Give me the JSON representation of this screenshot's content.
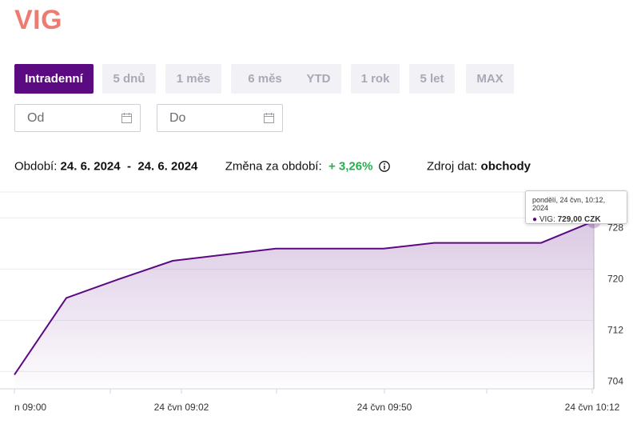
{
  "page": {
    "title": "VIG"
  },
  "periods": [
    {
      "label": "Intradenní",
      "active": true
    },
    {
      "label": "5 dnů",
      "active": false
    },
    {
      "label": "1 měs",
      "active": false
    },
    {
      "label": "6 měs",
      "active": false
    },
    {
      "label": "YTD",
      "active": false
    },
    {
      "label": "1 rok",
      "active": false
    },
    {
      "label": "5 let",
      "active": false
    },
    {
      "label": "MAX",
      "active": false
    }
  ],
  "date_filter": {
    "from_placeholder": "Od",
    "to_placeholder": "Do",
    "icon": "calendar-icon"
  },
  "info": {
    "period_label": "Období:",
    "period_from": "24. 6. 2024",
    "separator": "-",
    "period_to": "24. 6. 2024",
    "change_label": "Změna za období:",
    "change_value": "+ 3,26%",
    "source_label": "Zdroj dat:",
    "source_value": "obchody"
  },
  "colors": {
    "title": "#ef7b70",
    "accent": "#5b0a82",
    "positive": "#22b14c",
    "inactive_tab_bg": "#f2f1f6"
  },
  "tooltip": {
    "date_line": "pondělí, 24 čvn, 10:12, 2024",
    "series_label": "VIG:",
    "value": "729,00 CZK"
  },
  "chart_data": {
    "type": "area",
    "series": [
      {
        "name": "VIG",
        "x": [
          "09:00",
          "09:01",
          "09:02",
          "09:03",
          "09:05",
          "09:30",
          "09:50",
          "09:55",
          "10:05",
          "10:12"
        ],
        "values": [
          705.0,
          717.0,
          719.9,
          722.8,
          724.7,
          724.7,
          724.7,
          725.6,
          725.6,
          729.0
        ]
      }
    ],
    "ylim": [
      702.8,
      733.8
    ],
    "yticks": [
      704,
      712,
      720,
      728
    ],
    "xtick_labels": [
      "n 09:00",
      "24 čvn 09:02",
      "24 čvn 09:50",
      "24 čvn 10:12"
    ],
    "grid": true
  }
}
